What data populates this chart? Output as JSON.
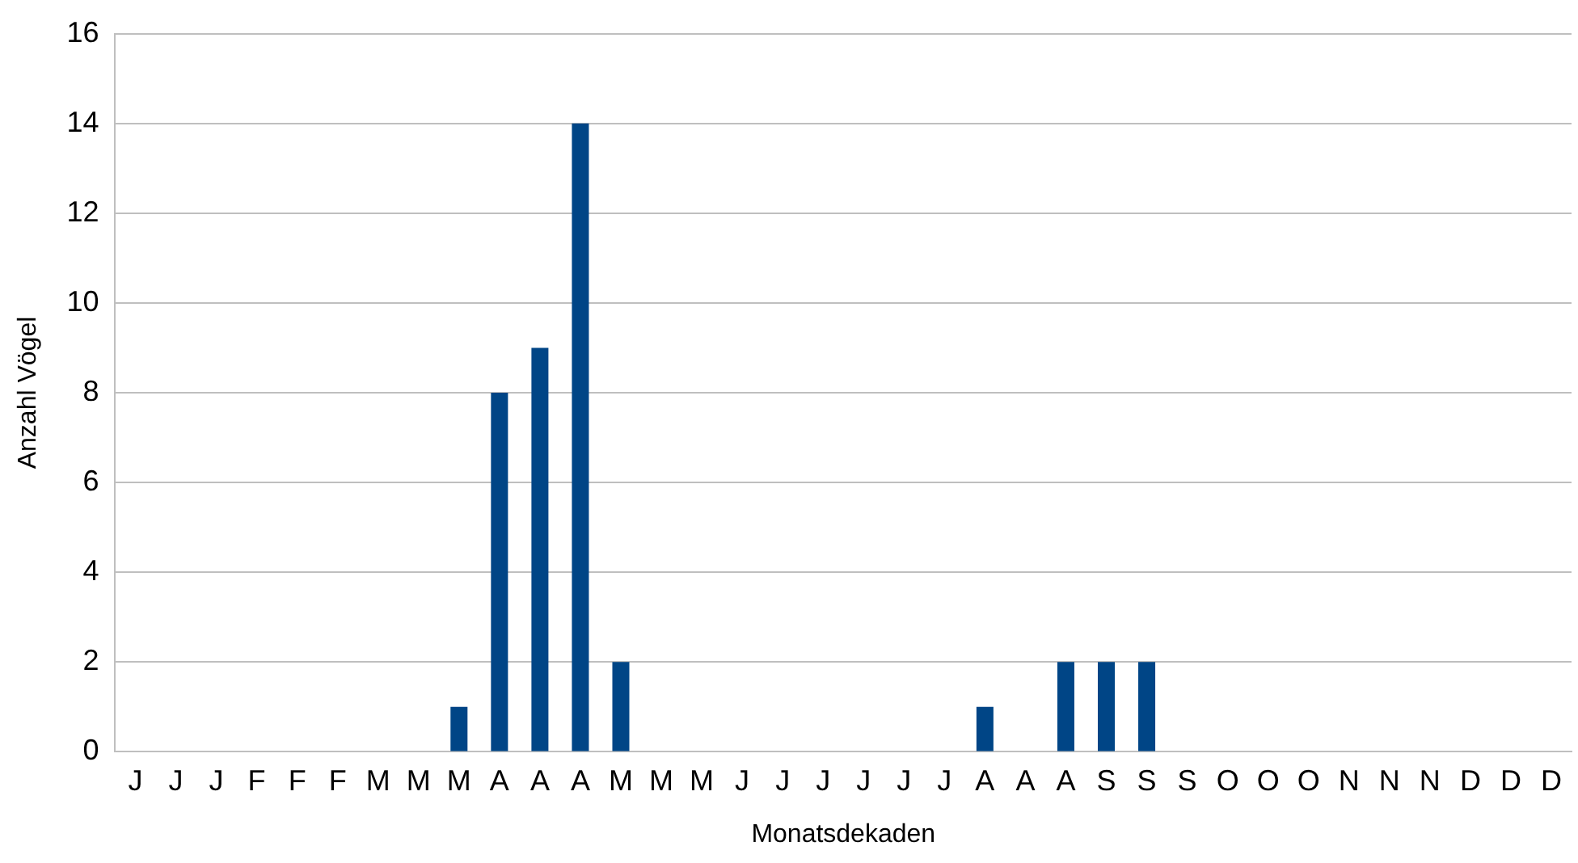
{
  "chart_data": {
    "type": "bar",
    "xlabel": "Monatsdekaden",
    "ylabel": "Anzahl Vögel",
    "categories": [
      "J",
      "J",
      "J",
      "F",
      "F",
      "F",
      "M",
      "M",
      "M",
      "A",
      "A",
      "A",
      "M",
      "M",
      "M",
      "J",
      "J",
      "J",
      "J",
      "J",
      "J",
      "A",
      "A",
      "A",
      "S",
      "S",
      "S",
      "O",
      "O",
      "O",
      "N",
      "N",
      "N",
      "D",
      "D",
      "D"
    ],
    "values": [
      0,
      0,
      0,
      0,
      0,
      0,
      0,
      0,
      1,
      8,
      9,
      14,
      2,
      0,
      0,
      0,
      0,
      0,
      0,
      0,
      0,
      1,
      0,
      2,
      2,
      2,
      0,
      0,
      0,
      0,
      0,
      0,
      0,
      0,
      0,
      0
    ],
    "color": "#004586",
    "ylim": [
      0,
      16
    ],
    "yticks": [
      0,
      2,
      4,
      6,
      8,
      10,
      12,
      14,
      16
    ],
    "grid": "y",
    "legend": false
  }
}
